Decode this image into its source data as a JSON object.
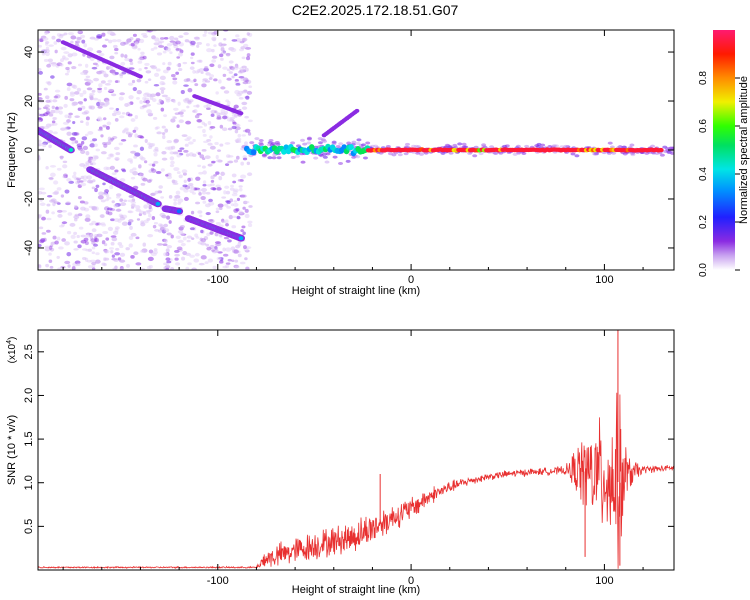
{
  "title": "C2E2.2025.172.18.51.G07",
  "chart_data": [
    {
      "type": "heatmap",
      "xlabel": "Height of straight line (km)",
      "ylabel": "Frequency (Hz)",
      "xlim": [
        -193,
        136
      ],
      "ylim": [
        -49,
        49
      ],
      "xticks": [
        -100,
        0,
        100
      ],
      "yticks": [
        40,
        20,
        0,
        -20,
        -40
      ],
      "colorbar": {
        "label": "Normalized spectral amplitude",
        "ticks": [
          "0.0",
          "0.2",
          "0.4",
          "0.6",
          "0.8"
        ],
        "tick_values": [
          0.0,
          0.2,
          0.4,
          0.6,
          0.8
        ],
        "range": [
          0,
          1
        ]
      },
      "tracks": [
        {
          "x": [
            -193,
            -176
          ],
          "y": [
            8,
            0
          ],
          "amplitude": 0.35
        },
        {
          "x": [
            -166,
            -131
          ],
          "y": [
            -8,
            -22
          ],
          "amplitude": 0.35
        },
        {
          "x": [
            -127,
            -120
          ],
          "y": [
            -24,
            -25
          ],
          "amplitude": 0.3
        },
        {
          "x": [
            -115,
            -88
          ],
          "y": [
            -28,
            -36
          ],
          "amplitude": 0.3
        },
        {
          "x": [
            -180,
            -140
          ],
          "y": [
            44,
            30
          ],
          "amplitude": 0.12
        },
        {
          "x": [
            -112,
            -88
          ],
          "y": [
            22,
            15
          ],
          "amplitude": 0.12
        },
        {
          "x": [
            -45,
            -28
          ],
          "y": [
            6,
            16
          ],
          "amplitude": 0.15
        }
      ],
      "carrier": {
        "x": [
          -85,
          136
        ],
        "y": 0,
        "segments": [
          {
            "x": [
              -85,
              -22
            ],
            "amplitude": 0.4
          },
          {
            "x": [
              -22,
              130
            ],
            "amplitude": 0.95
          }
        ]
      }
    },
    {
      "type": "line",
      "xlabel": "Height of straight line (km)",
      "ylabel": "SNR (10 * v/v)",
      "ymultiplier": "(x10^4)",
      "ymultiplier_base": "(x10",
      "ymultiplier_exp": "4",
      "ymultiplier_close": ")",
      "xlim": [
        -193,
        136
      ],
      "ylim": [
        0,
        2.75
      ],
      "xticks": [
        -100,
        0,
        100
      ],
      "yticks": [
        "2.5",
        "2.0",
        "1.5",
        "1.0",
        "0.5"
      ],
      "ytick_values": [
        2.5,
        2.0,
        1.5,
        1.0,
        0.5
      ],
      "color": "#e83030",
      "envelope": {
        "x": [
          -193,
          -80,
          -76,
          -70,
          -60,
          -50,
          -40,
          -30,
          -20,
          -10,
          0,
          10,
          20,
          30,
          40,
          50,
          60,
          70,
          80,
          88,
          95,
          102,
          108,
          112,
          120,
          136
        ],
        "mean": [
          0.03,
          0.03,
          0.12,
          0.16,
          0.22,
          0.28,
          0.33,
          0.38,
          0.48,
          0.6,
          0.7,
          0.85,
          0.95,
          1.02,
          1.07,
          1.1,
          1.12,
          1.13,
          1.14,
          1.14,
          1.1,
          1.05,
          1.0,
          1.1,
          1.15,
          1.17
        ],
        "spread": [
          0.01,
          0.01,
          0.12,
          0.16,
          0.18,
          0.2,
          0.2,
          0.22,
          0.22,
          0.18,
          0.16,
          0.12,
          0.08,
          0.06,
          0.05,
          0.05,
          0.05,
          0.05,
          0.06,
          0.45,
          0.7,
          0.8,
          1.2,
          0.25,
          0.05,
          0.04
        ]
      },
      "spikes": [
        {
          "x": -16,
          "y": 1.1
        },
        {
          "x": 90,
          "y": 0.15
        },
        {
          "x": 107,
          "y": 2.75
        },
        {
          "x": 108,
          "y": 0.05
        }
      ]
    }
  ]
}
